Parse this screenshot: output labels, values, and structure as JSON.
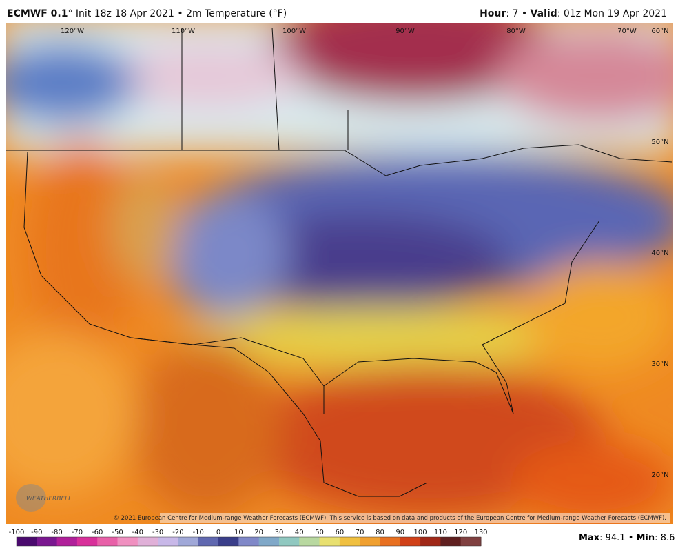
{
  "header": {
    "model": "ECMWF 0.1",
    "description": "° Init 18z 18 Apr 2021 • 2m Temperature (°F)",
    "hour_label": "Hour",
    "hour_value": ": 7 • ",
    "valid_label": "Valid",
    "valid_value": ": 01z Mon 19 Apr 2021"
  },
  "map": {
    "lon_labels": [
      "120°W",
      "110°W",
      "100°W",
      "90°W",
      "80°W",
      "70°W"
    ],
    "lat_labels": [
      "60°N",
      "50°N",
      "40°N",
      "30°N",
      "20°N"
    ],
    "logo": "WEATHERBELL",
    "copyright": "© 2021 European Centre for Medium-range Weather Forecasts (ECMWF). This service is based on data and products of the European Centre for Medium-range Weather Forecasts (ECMWF)."
  },
  "colorbar": {
    "ticks": [
      -100,
      -90,
      -80,
      -70,
      -60,
      -50,
      -40,
      -30,
      -20,
      -10,
      0,
      10,
      20,
      30,
      40,
      50,
      60,
      70,
      80,
      90,
      100,
      110,
      120,
      130
    ]
  },
  "footer": {
    "max_label": "Max",
    "max_value": ": 94.1 • ",
    "min_label": "Min",
    "min_value": ": 8.6"
  }
}
